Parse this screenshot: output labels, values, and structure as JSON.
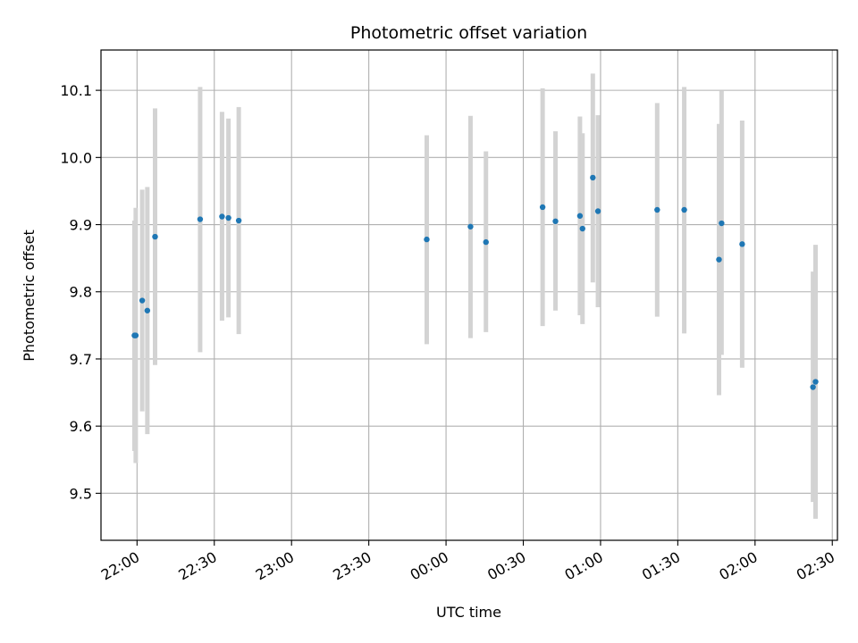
{
  "chart_data": {
    "type": "scatter",
    "title": "Photometric offset variation",
    "xlabel": "UTC time",
    "ylabel": "Photometric offset",
    "x_tick_labels": [
      "22:00",
      "22:30",
      "23:00",
      "23:30",
      "00:00",
      "00:30",
      "01:00",
      "01:30",
      "02:00",
      "02:30"
    ],
    "x_ticks_minutes": [
      0,
      30,
      60,
      90,
      120,
      150,
      180,
      210,
      240,
      270
    ],
    "xlim_minutes": [
      -14,
      272
    ],
    "ylim": [
      9.43,
      10.16
    ],
    "y_ticks": [
      9.5,
      9.6,
      9.7,
      9.8,
      9.9,
      10.0,
      10.1
    ],
    "y_tick_labels": [
      "9.5",
      "9.6",
      "9.7",
      "9.8",
      "9.9",
      "10.0",
      "10.1"
    ],
    "grid": true,
    "marker_color": "#1f77b4",
    "errorbar_color": "#d3d3d3",
    "points": [
      {
        "x": -1.0,
        "y": 9.735,
        "lo": 9.563,
        "hi": 9.906
      },
      {
        "x": -0.5,
        "y": 9.735,
        "lo": 9.545,
        "hi": 9.925
      },
      {
        "x": 2.0,
        "y": 9.787,
        "lo": 9.622,
        "hi": 9.952
      },
      {
        "x": 4.0,
        "y": 9.772,
        "lo": 9.588,
        "hi": 9.956
      },
      {
        "x": 7.0,
        "y": 9.882,
        "lo": 9.691,
        "hi": 10.073
      },
      {
        "x": 24.5,
        "y": 9.908,
        "lo": 9.71,
        "hi": 10.105
      },
      {
        "x": 33.0,
        "y": 9.912,
        "lo": 9.757,
        "hi": 10.068
      },
      {
        "x": 35.5,
        "y": 9.91,
        "lo": 9.762,
        "hi": 10.058
      },
      {
        "x": 39.5,
        "y": 9.906,
        "lo": 9.737,
        "hi": 10.075
      },
      {
        "x": 112.5,
        "y": 9.878,
        "lo": 9.722,
        "hi": 10.033
      },
      {
        "x": 129.5,
        "y": 9.897,
        "lo": 9.731,
        "hi": 10.062
      },
      {
        "x": 135.5,
        "y": 9.874,
        "lo": 9.74,
        "hi": 10.009
      },
      {
        "x": 157.5,
        "y": 9.926,
        "lo": 9.749,
        "hi": 10.103
      },
      {
        "x": 162.5,
        "y": 9.905,
        "lo": 9.772,
        "hi": 10.039
      },
      {
        "x": 172.0,
        "y": 9.913,
        "lo": 9.765,
        "hi": 10.061
      },
      {
        "x": 173.0,
        "y": 9.894,
        "lo": 9.752,
        "hi": 10.036
      },
      {
        "x": 177.0,
        "y": 9.97,
        "lo": 9.814,
        "hi": 10.125
      },
      {
        "x": 179.0,
        "y": 9.92,
        "lo": 9.777,
        "hi": 10.063
      },
      {
        "x": 202.0,
        "y": 9.922,
        "lo": 9.763,
        "hi": 10.081
      },
      {
        "x": 212.5,
        "y": 9.922,
        "lo": 9.738,
        "hi": 10.105
      },
      {
        "x": 226.0,
        "y": 9.848,
        "lo": 9.646,
        "hi": 10.05
      },
      {
        "x": 227.0,
        "y": 9.902,
        "lo": 9.706,
        "hi": 10.099
      },
      {
        "x": 235.0,
        "y": 9.871,
        "lo": 9.687,
        "hi": 10.055
      },
      {
        "x": 262.5,
        "y": 9.658,
        "lo": 9.487,
        "hi": 9.83
      },
      {
        "x": 263.5,
        "y": 9.666,
        "lo": 9.462,
        "hi": 9.87
      }
    ]
  }
}
